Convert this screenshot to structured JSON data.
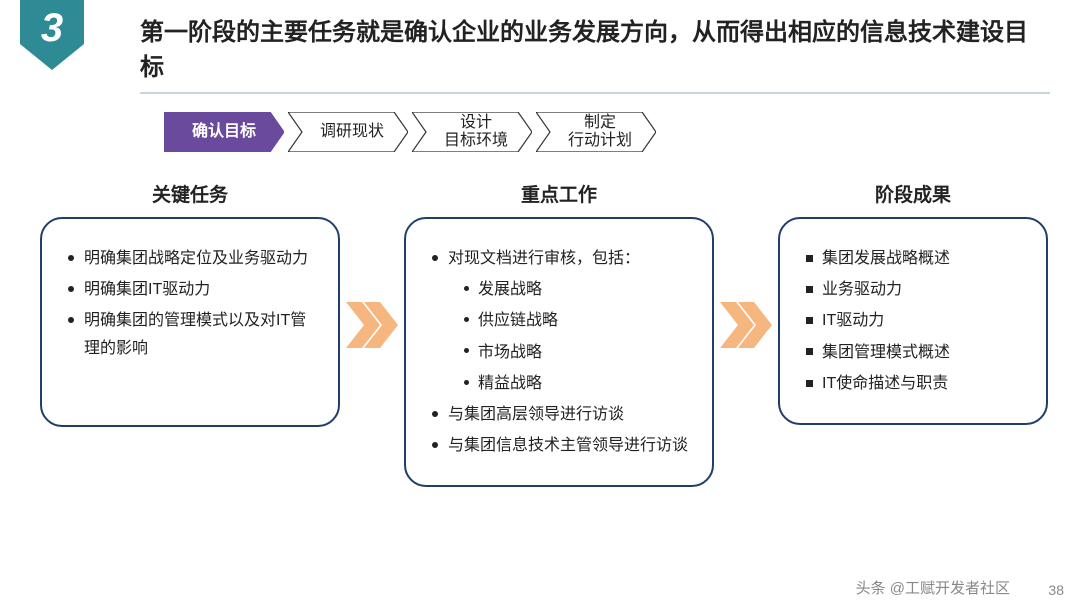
{
  "header": {
    "badge_number": "3",
    "badge_color": "#2e8a94",
    "title": "第一阶段的主要任务就是确认企业的业务发展方向，从而得出相应的信息技术建设目标",
    "underline_color": "#c9d6da"
  },
  "steps": {
    "active_fill": "#6a4a9c",
    "inactive_fill": "#ffffff",
    "inactive_stroke": "#333333",
    "items": [
      {
        "label": "确认目标",
        "active": true
      },
      {
        "label": "调研现状",
        "active": false
      },
      {
        "label": "设计\n目标环境",
        "active": false
      },
      {
        "label": "制定\n行动计划",
        "active": false
      }
    ]
  },
  "arrow_color": "#f5b77f",
  "card_border_color": "#1f3e6b",
  "columns": [
    {
      "heading": "关键任务",
      "bullet": "disc",
      "items": [
        {
          "t": "明确集团战略定位及业务驱动力"
        },
        {
          "t": "明确集团IT驱动力"
        },
        {
          "t": "明确集团的管理模式以及对IT管理的影响"
        }
      ]
    },
    {
      "heading": "重点工作",
      "bullet": "disc",
      "items": [
        {
          "t": "对现文档进行审核，包括：",
          "sub": [
            "发展战略",
            "供应链战略",
            "市场战略",
            "精益战略"
          ]
        },
        {
          "t": "与集团高层领导进行访谈"
        },
        {
          "t": "与集团信息技术主管领导进行访谈"
        }
      ]
    },
    {
      "heading": "阶段成果",
      "bullet": "square",
      "items": [
        {
          "t": "集团发展战略概述"
        },
        {
          "t": "业务驱动力"
        },
        {
          "t": "IT驱动力"
        },
        {
          "t": "集团管理模式概述"
        },
        {
          "t": "IT使命描述与职责"
        }
      ]
    }
  ],
  "watermark": "头条 @工赋开发者社区",
  "page_number": "38"
}
